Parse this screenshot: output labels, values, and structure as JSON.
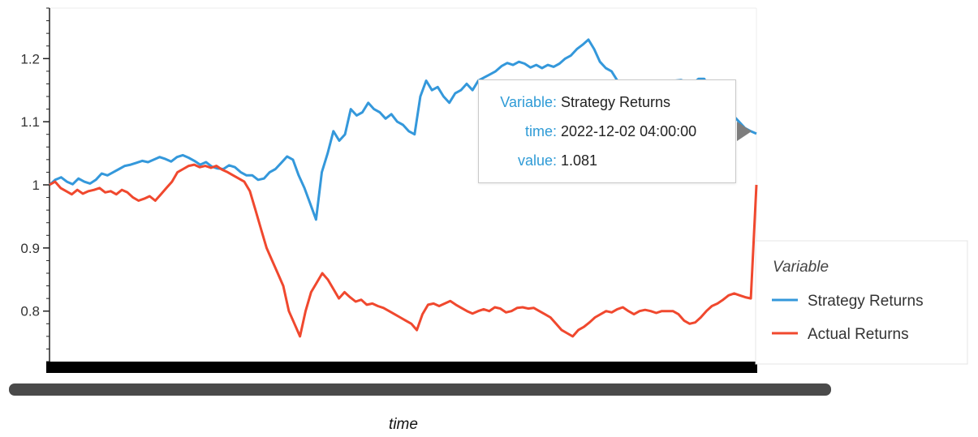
{
  "chart_data": {
    "type": "line",
    "xlabel": "time",
    "ylabel": "",
    "ylim": [
      0.72,
      1.28
    ],
    "yticks": [
      "1.2",
      "1.1",
      "1",
      "0.9",
      "0.8"
    ],
    "legend": {
      "title": "Variable",
      "placement": "right"
    },
    "series": [
      {
        "name": "Strategy Returns",
        "color": "#3498db",
        "values": [
          1.0,
          1.008,
          1.012,
          1.005,
          1.001,
          1.01,
          1.005,
          1.002,
          1.008,
          1.018,
          1.015,
          1.02,
          1.025,
          1.03,
          1.032,
          1.035,
          1.038,
          1.036,
          1.04,
          1.044,
          1.041,
          1.037,
          1.044,
          1.047,
          1.043,
          1.038,
          1.032,
          1.036,
          1.029,
          1.026,
          1.025,
          1.031,
          1.028,
          1.02,
          1.015,
          1.015,
          1.008,
          1.01,
          1.02,
          1.025,
          1.035,
          1.045,
          1.04,
          1.015,
          0.995,
          0.97,
          0.945,
          1.02,
          1.05,
          1.085,
          1.07,
          1.08,
          1.12,
          1.11,
          1.115,
          1.13,
          1.12,
          1.115,
          1.105,
          1.112,
          1.1,
          1.095,
          1.085,
          1.08,
          1.14,
          1.165,
          1.15,
          1.155,
          1.14,
          1.13,
          1.145,
          1.15,
          1.16,
          1.15,
          1.165,
          1.17,
          1.175,
          1.18,
          1.188,
          1.193,
          1.19,
          1.195,
          1.192,
          1.186,
          1.19,
          1.185,
          1.19,
          1.187,
          1.192,
          1.2,
          1.205,
          1.215,
          1.222,
          1.23,
          1.215,
          1.195,
          1.185,
          1.18,
          1.165,
          1.155,
          1.15,
          1.155,
          1.16,
          1.158,
          1.162,
          1.16,
          1.158,
          1.162,
          1.165,
          1.166,
          1.163,
          1.16,
          1.168,
          1.168,
          1.15,
          1.14,
          1.13,
          1.12,
          1.11,
          1.1,
          1.09,
          1.085,
          1.081
        ]
      },
      {
        "name": "Actual Returns",
        "color": "#f0482e",
        "values": [
          1.0,
          1.005,
          0.995,
          0.99,
          0.985,
          0.992,
          0.986,
          0.99,
          0.992,
          0.995,
          0.988,
          0.99,
          0.985,
          0.992,
          0.988,
          0.98,
          0.975,
          0.978,
          0.982,
          0.975,
          0.985,
          0.995,
          1.005,
          1.02,
          1.025,
          1.03,
          1.032,
          1.028,
          1.03,
          1.027,
          1.03,
          1.024,
          1.02,
          1.015,
          1.01,
          1.005,
          0.99,
          0.96,
          0.93,
          0.9,
          0.88,
          0.86,
          0.84,
          0.8,
          0.78,
          0.76,
          0.8,
          0.83,
          0.845,
          0.86,
          0.85,
          0.835,
          0.82,
          0.83,
          0.822,
          0.815,
          0.818,
          0.81,
          0.812,
          0.808,
          0.805,
          0.8,
          0.795,
          0.79,
          0.785,
          0.78,
          0.77,
          0.795,
          0.81,
          0.812,
          0.808,
          0.812,
          0.816,
          0.81,
          0.805,
          0.8,
          0.796,
          0.8,
          0.803,
          0.8,
          0.806,
          0.804,
          0.798,
          0.8,
          0.805,
          0.806,
          0.804,
          0.805,
          0.8,
          0.795,
          0.79,
          0.78,
          0.77,
          0.765,
          0.76,
          0.77,
          0.775,
          0.782,
          0.79,
          0.795,
          0.8,
          0.798,
          0.803,
          0.806,
          0.8,
          0.795,
          0.8,
          0.802,
          0.8,
          0.797,
          0.8,
          0.8,
          0.8,
          0.795,
          0.785,
          0.78,
          0.782,
          0.79,
          0.8,
          0.808,
          0.812,
          0.818,
          0.825,
          0.828,
          0.825,
          0.822,
          0.82,
          1.0
        ]
      }
    ]
  },
  "tooltip": {
    "rows": [
      {
        "key": "Variable:",
        "value": "Strategy Returns"
      },
      {
        "key": "time:",
        "value": "2022-12-02 04:00:00"
      },
      {
        "key": "value:",
        "value": "1.081"
      }
    ]
  }
}
